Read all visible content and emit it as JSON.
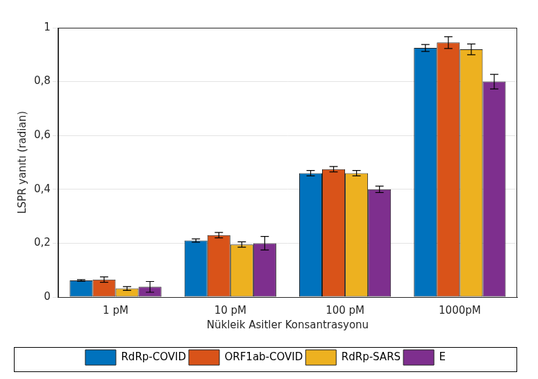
{
  "chart_data": {
    "type": "bar",
    "x_label": "Nükleik Asitler Konsantrasyonu",
    "y_label": "LSPR yanıtı (radian)",
    "categories": [
      "1 pM",
      "10 pM",
      "100 pM",
      "1000pM"
    ],
    "series": [
      {
        "name": "RdRp-COVID",
        "color": "#0072BD",
        "values": [
          0.062,
          0.21,
          0.46,
          0.925
        ],
        "errors": [
          0.003,
          0.006,
          0.01,
          0.013
        ]
      },
      {
        "name": "ORF1ab-COVID",
        "color": "#D95319",
        "values": [
          0.065,
          0.23,
          0.475,
          0.945
        ],
        "errors": [
          0.01,
          0.01,
          0.01,
          0.022
        ]
      },
      {
        "name": "RdRp-SARS",
        "color": "#EDB120",
        "values": [
          0.032,
          0.195,
          0.46,
          0.92
        ],
        "errors": [
          0.007,
          0.01,
          0.01,
          0.02
        ]
      },
      {
        "name": "E",
        "color": "#7E2F8E",
        "values": [
          0.038,
          0.2,
          0.4,
          0.8
        ],
        "errors": [
          0.02,
          0.025,
          0.012,
          0.027
        ]
      }
    ],
    "ylim": [
      0,
      1
    ],
    "yticks": [
      0,
      {
        "value": 0.2,
        "label": "0,2"
      },
      {
        "value": 0.4,
        "label": "0,4"
      },
      {
        "value": 0.6,
        "label": "0,6"
      },
      {
        "value": 0.8,
        "label": "0,8"
      },
      1
    ],
    "grid": true,
    "legend": "bottom"
  }
}
